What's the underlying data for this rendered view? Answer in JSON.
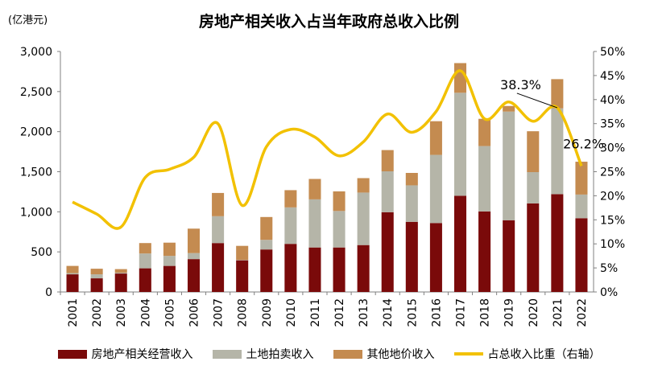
{
  "unit_label": "(亿港元)",
  "chart_data": {
    "type": "bar",
    "title": "房地产相关收入占当年政府总收入比例",
    "stacked": true,
    "categories": [
      "2001",
      "2002",
      "2003",
      "2004",
      "2005",
      "2006",
      "2007",
      "2008",
      "2009",
      "2010",
      "2011",
      "2012",
      "2013",
      "2014",
      "2015",
      "2016",
      "2017",
      "2018",
      "2019",
      "2020",
      "2021",
      "2022"
    ],
    "ylim": [
      0,
      3000
    ],
    "y_ticks": [
      "0",
      "500",
      "1,000",
      "1,500",
      "2,000",
      "2,500",
      "3,000"
    ],
    "y2lim": [
      0,
      50
    ],
    "y2_ticks": [
      "0%",
      "5%",
      "10%",
      "15%",
      "20%",
      "25%",
      "30%",
      "35%",
      "40%",
      "45%",
      "50%"
    ],
    "grid": false,
    "legend_position": "bottom",
    "series": [
      {
        "name": "房地产相关经营收入",
        "color": "#7a0a0a",
        "values": [
          220,
          170,
          230,
          295,
          325,
          410,
          610,
          395,
          530,
          600,
          555,
          555,
          585,
          995,
          875,
          860,
          1200,
          1005,
          895,
          1105,
          1220,
          920
        ]
      },
      {
        "name": "土地拍卖收入",
        "color": "#b5b5a8",
        "values": [
          15,
          50,
          10,
          185,
          125,
          75,
          335,
          5,
          120,
          455,
          600,
          455,
          655,
          510,
          455,
          850,
          1285,
          815,
          1355,
          390,
          1070,
          295
        ]
      },
      {
        "name": "其他地价收入",
        "color": "#c48b50",
        "values": [
          90,
          70,
          45,
          130,
          165,
          305,
          290,
          175,
          285,
          215,
          255,
          245,
          180,
          265,
          155,
          420,
          370,
          340,
          70,
          510,
          365,
          410
        ]
      },
      {
        "name": "占总收入比重（右轴）",
        "color": "#f2c100",
        "axis": "right",
        "values": [
          18.7,
          16.2,
          13.5,
          23.8,
          25.5,
          28.0,
          35.0,
          18.0,
          30.2,
          33.8,
          32.2,
          28.3,
          31.2,
          37.0,
          33.2,
          37.5,
          46.0,
          36.0,
          39.5,
          35.5,
          38.3,
          26.2
        ]
      }
    ],
    "annotations": [
      {
        "text": "38.3%",
        "category": "2021",
        "value": 38.3
      },
      {
        "text": "26.2%",
        "category": "2022",
        "value": 26.2
      }
    ]
  }
}
